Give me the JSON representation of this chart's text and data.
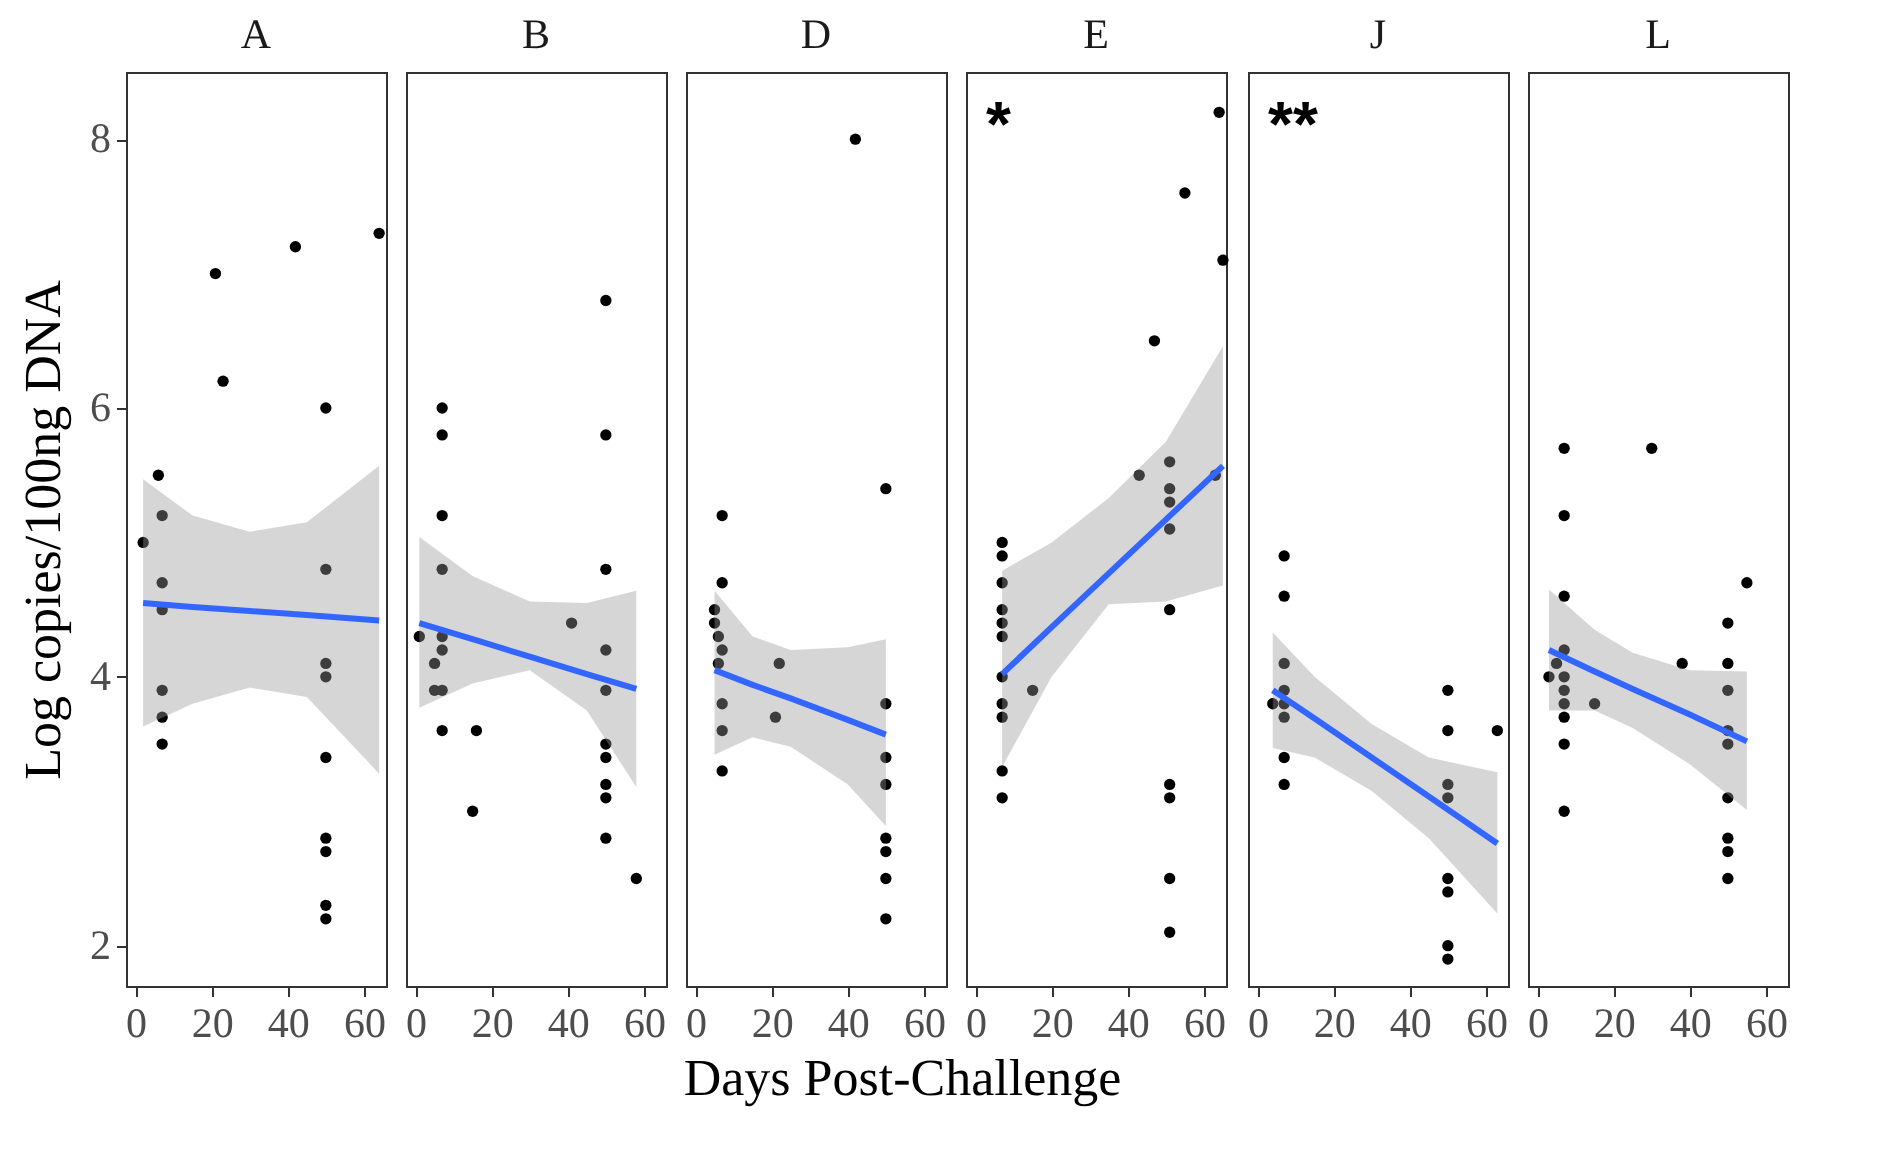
{
  "chart_data": [
    {
      "type": "scatter",
      "title": "A",
      "ylabel": "Log copies/100ng DNA",
      "xlabel": "Days Post-Challenge",
      "xlim": [
        -2.5,
        65.8
      ],
      "ylim": [
        1.7,
        8.5
      ],
      "xticks": [
        0,
        20,
        40,
        60
      ],
      "yticks": [
        2,
        4,
        6,
        8
      ],
      "series": [
        {
          "color": "#000000",
          "x": [
            2,
            6,
            7,
            7,
            7,
            7,
            7,
            7,
            21,
            23,
            42,
            64,
            50,
            50,
            50,
            50,
            50,
            50,
            50,
            50,
            50
          ],
          "values": [
            5.0,
            5.5,
            5.2,
            4.7,
            4.5,
            3.9,
            3.7,
            3.5,
            7.0,
            6.2,
            7.2,
            7.3,
            6.0,
            4.8,
            4.1,
            4.0,
            3.4,
            2.8,
            2.7,
            2.3,
            2.2
          ]
        },
        {
          "type": "line",
          "color": "#3366ff",
          "x": [
            2,
            15,
            30,
            45,
            64
          ],
          "values": [
            4.55,
            4.52,
            4.49,
            4.46,
            4.42
          ],
          "lower": [
            3.63,
            3.8,
            3.92,
            3.85,
            3.28
          ],
          "upper": [
            5.47,
            5.2,
            5.08,
            5.15,
            5.57
          ]
        }
      ]
    },
    {
      "type": "scatter",
      "title": "B",
      "xlim": [
        -2.5,
        65.8
      ],
      "ylim": [
        1.7,
        8.5
      ],
      "xticks": [
        0,
        20,
        40,
        60
      ],
      "yticks": [
        2,
        4,
        6,
        8
      ],
      "tick_labels": "x",
      "series": [
        {
          "color": "#000000",
          "x": [
            1,
            5,
            5,
            7,
            7,
            7,
            7,
            7,
            7,
            7,
            7,
            16,
            15,
            41,
            50,
            50,
            50,
            50,
            50,
            50,
            50,
            50,
            50,
            50,
            58
          ],
          "values": [
            4.3,
            4.1,
            3.9,
            3.9,
            6.0,
            5.8,
            5.2,
            4.8,
            4.3,
            4.2,
            3.6,
            3.6,
            3.0,
            4.4,
            6.8,
            5.8,
            4.8,
            4.2,
            3.9,
            3.5,
            3.4,
            3.2,
            3.1,
            2.8,
            2.5
          ]
        },
        {
          "type": "line",
          "color": "#3366ff",
          "x": [
            1,
            15,
            30,
            45,
            58
          ],
          "values": [
            4.4,
            4.28,
            4.15,
            4.02,
            3.91
          ],
          "lower": [
            3.77,
            3.95,
            4.05,
            3.75,
            3.18
          ],
          "upper": [
            5.04,
            4.75,
            4.56,
            4.55,
            4.64
          ]
        }
      ]
    },
    {
      "type": "scatter",
      "title": "D",
      "xlim": [
        -2.5,
        65.8
      ],
      "ylim": [
        1.7,
        8.5
      ],
      "xticks": [
        0,
        20,
        40,
        60
      ],
      "yticks": [
        2,
        4,
        6,
        8
      ],
      "tick_labels": "x",
      "series": [
        {
          "color": "#000000",
          "x": [
            42,
            50,
            7,
            7,
            5,
            5,
            6,
            7,
            6,
            7,
            7,
            7,
            22,
            21,
            50,
            50,
            50,
            50,
            50,
            50,
            50
          ],
          "values": [
            8.0,
            5.4,
            5.2,
            4.7,
            4.5,
            4.4,
            4.3,
            4.2,
            4.1,
            3.8,
            3.6,
            3.3,
            4.1,
            3.7,
            3.8,
            3.4,
            3.2,
            2.8,
            2.7,
            2.5,
            2.2
          ]
        },
        {
          "type": "line",
          "color": "#3366ff",
          "x": [
            5,
            15,
            25,
            40,
            50
          ],
          "values": [
            4.05,
            3.94,
            3.84,
            3.68,
            3.57
          ],
          "lower": [
            3.42,
            3.55,
            3.48,
            3.2,
            2.89
          ],
          "upper": [
            4.64,
            4.3,
            4.2,
            4.22,
            4.28
          ]
        }
      ]
    },
    {
      "type": "scatter",
      "title": "E",
      "annotations": [
        "*"
      ],
      "xlim": [
        -2.5,
        65.8
      ],
      "ylim": [
        1.7,
        8.5
      ],
      "xticks": [
        0,
        20,
        40,
        60
      ],
      "yticks": [
        2,
        4,
        6,
        8
      ],
      "tick_labels": "x",
      "series": [
        {
          "color": "#000000",
          "x": [
            7,
            7,
            7,
            7,
            7,
            7,
            7,
            7,
            7,
            7,
            7,
            15,
            43,
            47,
            51,
            51,
            51,
            51,
            51,
            51,
            51,
            51,
            51,
            55,
            64,
            65,
            63
          ],
          "values": [
            5.0,
            4.9,
            4.7,
            4.5,
            4.4,
            4.3,
            4.0,
            3.8,
            3.7,
            3.3,
            3.1,
            3.9,
            5.5,
            6.5,
            5.6,
            5.4,
            5.3,
            5.1,
            4.5,
            3.2,
            3.1,
            2.5,
            2.1,
            7.6,
            8.2,
            7.1,
            5.5
          ]
        },
        {
          "type": "line",
          "color": "#3366ff",
          "x": [
            7,
            20,
            35,
            50,
            65
          ],
          "values": [
            4.02,
            4.37,
            4.77,
            5.17,
            5.57
          ],
          "lower": [
            3.33,
            4.0,
            4.54,
            4.56,
            4.68
          ],
          "upper": [
            4.79,
            5.0,
            5.33,
            5.75,
            6.46
          ]
        }
      ]
    },
    {
      "type": "scatter",
      "title": "J",
      "annotations": [
        "**"
      ],
      "xlim": [
        -2.5,
        65.8
      ],
      "ylim": [
        1.7,
        8.5
      ],
      "xticks": [
        0,
        20,
        40,
        60
      ],
      "yticks": [
        2,
        4,
        6,
        8
      ],
      "tick_labels": "x",
      "series": [
        {
          "color": "#000000",
          "x": [
            7,
            7,
            7,
            7,
            4,
            7,
            7,
            7,
            7,
            50,
            50,
            63,
            50,
            50,
            50,
            50,
            50,
            50
          ],
          "values": [
            4.9,
            4.6,
            4.1,
            3.9,
            3.8,
            3.8,
            3.7,
            3.4,
            3.2,
            3.9,
            3.6,
            3.6,
            3.2,
            3.1,
            2.5,
            2.4,
            2.0,
            1.9
          ]
        },
        {
          "type": "line",
          "color": "#3366ff",
          "x": [
            4,
            15,
            30,
            45,
            63
          ],
          "values": [
            3.9,
            3.69,
            3.4,
            3.11,
            2.76
          ],
          "lower": [
            3.47,
            3.4,
            3.15,
            2.8,
            2.24
          ],
          "upper": [
            4.33,
            4.0,
            3.65,
            3.4,
            3.29
          ]
        }
      ]
    },
    {
      "type": "scatter",
      "title": "L",
      "xlim": [
        -2.5,
        65.8
      ],
      "ylim": [
        1.7,
        8.5
      ],
      "xticks": [
        0,
        20,
        40,
        60
      ],
      "yticks": [
        2,
        4,
        6,
        8
      ],
      "tick_labels": "x",
      "series": [
        {
          "color": "#000000",
          "x": [
            3,
            5,
            7,
            7,
            7,
            7,
            7,
            7,
            7,
            7,
            7,
            7,
            15,
            30,
            38,
            55,
            50,
            50,
            50,
            50,
            50,
            50,
            50,
            50,
            50
          ],
          "values": [
            4.0,
            4.1,
            5.7,
            5.2,
            4.6,
            4.2,
            4.0,
            3.9,
            3.8,
            3.7,
            3.5,
            3.0,
            3.8,
            5.7,
            4.1,
            4.7,
            4.4,
            4.1,
            3.9,
            3.6,
            3.5,
            3.1,
            2.8,
            2.7,
            2.5
          ]
        },
        {
          "type": "line",
          "color": "#3366ff",
          "x": [
            3,
            15,
            25,
            40,
            55
          ],
          "values": [
            4.2,
            4.04,
            3.91,
            3.72,
            3.52
          ],
          "lower": [
            3.75,
            3.75,
            3.62,
            3.35,
            3.01
          ],
          "upper": [
            4.65,
            4.35,
            4.18,
            4.05,
            4.04
          ]
        }
      ]
    }
  ]
}
